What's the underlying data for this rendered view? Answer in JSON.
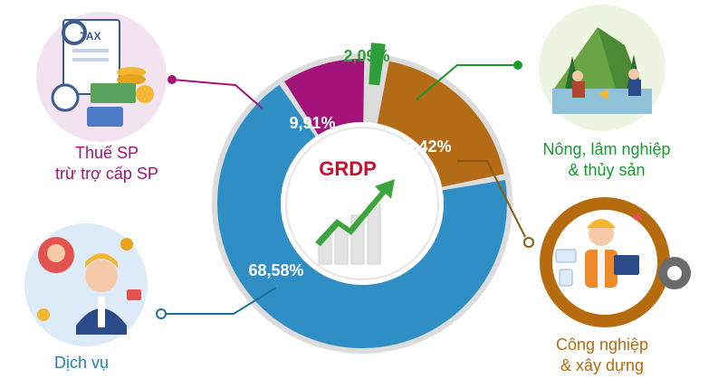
{
  "chart_data": {
    "type": "pie",
    "center_label": "GRDP",
    "slices": [
      {
        "label": "Nông, lâm nghiệp & thủy sản",
        "value": 2.09,
        "value_label": "2,09%",
        "color": "#2e9e3a"
      },
      {
        "label": "Công nghiệp & xây dựng",
        "value": 19.42,
        "value_label": "19,42%",
        "color": "#b46b16"
      },
      {
        "label": "Dịch vụ",
        "value": 68.58,
        "value_label": "68,58%",
        "color": "#2f8fc4"
      },
      {
        "label": "Thuế SP trừ trợ cấp SP",
        "value": 9.91,
        "value_label": "9,91%",
        "color": "#a3137a"
      }
    ]
  },
  "labels": {
    "tax": [
      "Thuế SP",
      "trừ trợ cấp SP"
    ],
    "services": [
      "Dịch vụ"
    ],
    "agri": [
      "Nông, lâm nghiệp",
      "& thủy sản"
    ],
    "industry": [
      "Công nghiệp",
      "& xây dựng"
    ]
  },
  "colors": {
    "tax": "#a3137a",
    "services": "#2f8fc4",
    "agri": "#159a2c",
    "industry": "#b56b0e",
    "ring_bg": "#dcdcdc"
  },
  "icons": [
    "tax-finance-illustration",
    "customer-service-illustration",
    "rice-farming-illustration",
    "engineer-gear-illustration",
    "growth-arrow-icon"
  ]
}
